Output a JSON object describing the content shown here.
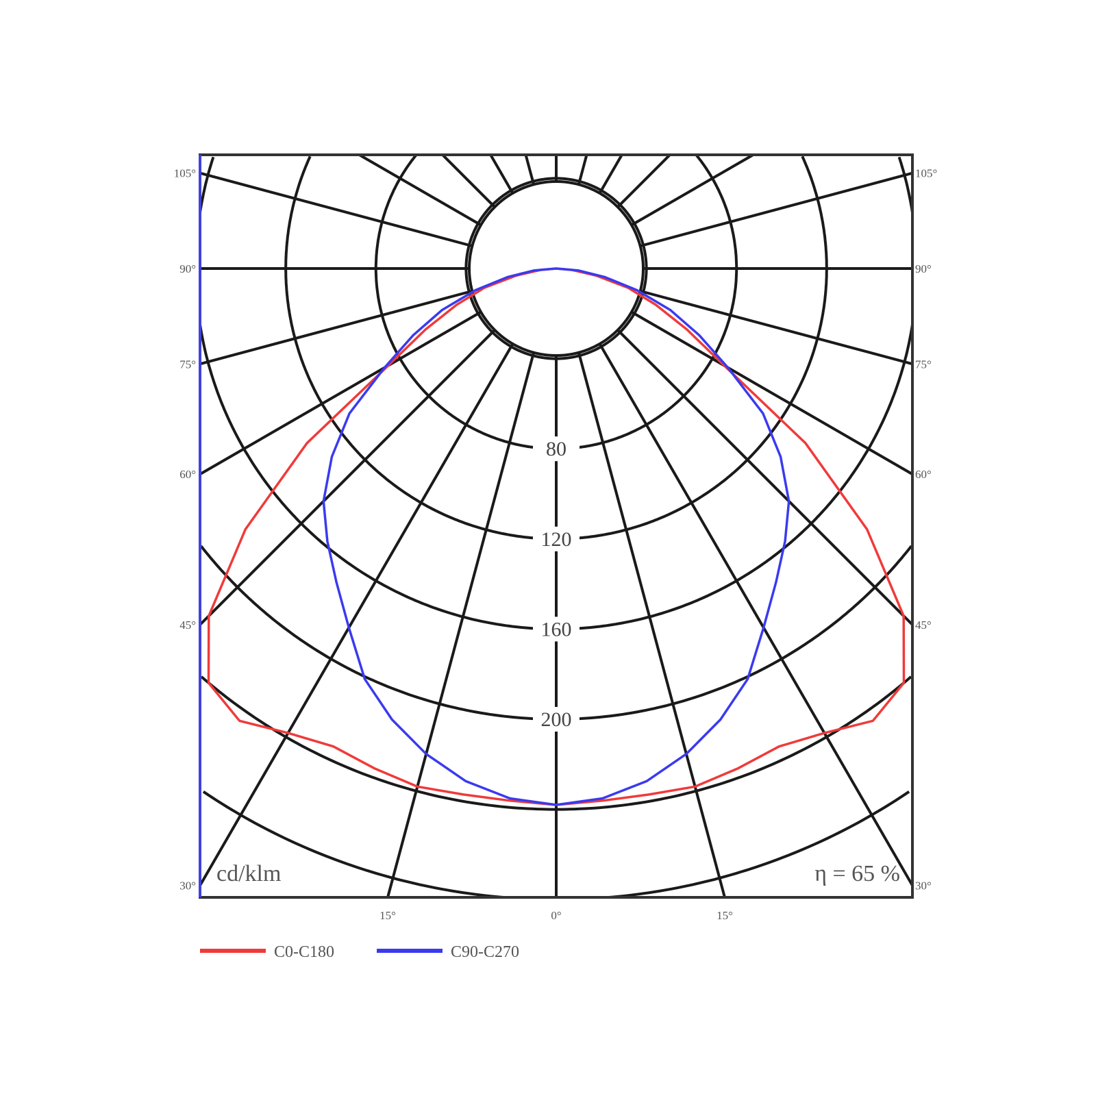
{
  "chart_data": {
    "type": "line",
    "coordinate_system": "polar",
    "unit_label": "cd/klm",
    "annotation": "η = 65 %",
    "radial_ticks": [
      80,
      120,
      160,
      200
    ],
    "radial_range": [
      0,
      320
    ],
    "side_angle_ticks": [
      "105°",
      "90°",
      "75°",
      "60°",
      "45°",
      "30°"
    ],
    "side_angle_values": [
      105,
      90,
      75,
      60,
      45,
      30
    ],
    "bottom_angle_ticks": [
      "15°",
      "0°",
      "15°"
    ],
    "bottom_angle_values": [
      -15,
      0,
      15
    ],
    "angle_grid_step_deg": 15,
    "grid": true,
    "legend_position": "bottom-left",
    "angles_deg": [
      0,
      5,
      10,
      15,
      20,
      25,
      30,
      35,
      40,
      45,
      50,
      55,
      60,
      65,
      70,
      75,
      80,
      85,
      90
    ],
    "series": [
      {
        "name": "C0-C180",
        "color": "#f03a3a",
        "values": [
          238,
          237,
          237,
          238,
          236,
          234,
          238,
          245,
          240,
          218,
          180,
          135,
          86,
          64,
          47,
          33,
          18,
          7,
          0
        ]
      },
      {
        "name": "C90-C270",
        "color": "#3a3af0",
        "values": [
          238,
          236,
          231,
          223,
          213,
          201,
          184,
          170,
          158,
          146,
          130,
          112,
          88,
          70,
          54,
          37,
          22,
          10,
          0
        ]
      }
    ]
  }
}
